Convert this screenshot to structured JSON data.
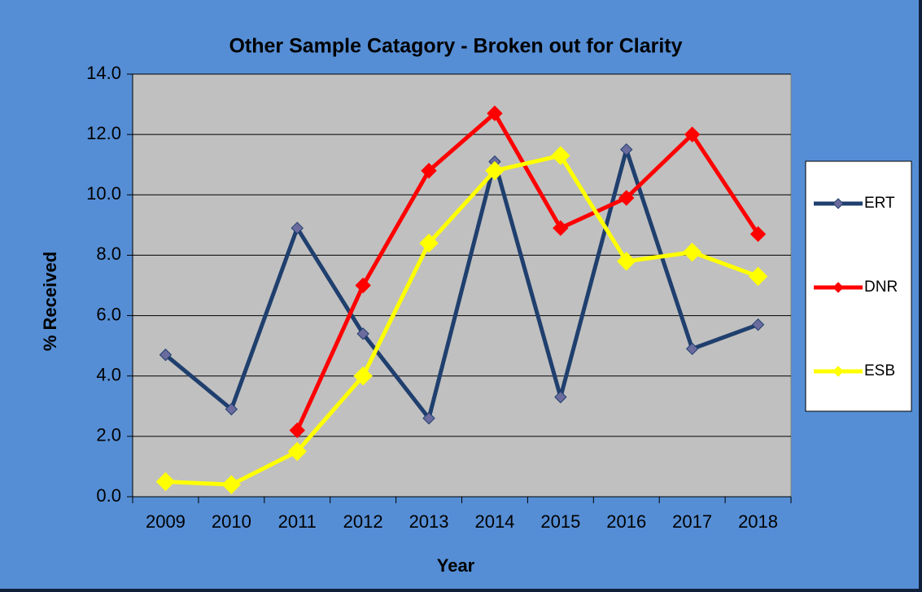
{
  "chart_data": {
    "type": "line",
    "title": "Other Sample Catagory - Broken out for Clarity",
    "x_label": "Year",
    "y_label": "% Received",
    "categories": [
      "2009",
      "2010",
      "2011",
      "2012",
      "2013",
      "2014",
      "2015",
      "2016",
      "2017",
      "2018"
    ],
    "series": [
      {
        "name": "ERT",
        "color": "#1f3f6e",
        "marker_fill": "#6b6b9e",
        "marker_size": 7,
        "values": [
          4.7,
          2.9,
          8.9,
          5.4,
          2.6,
          11.1,
          3.3,
          11.5,
          4.9,
          5.7
        ]
      },
      {
        "name": "DNR",
        "color": "#ff0000",
        "marker_fill": "#ff0000",
        "marker_size": 9,
        "values": [
          null,
          null,
          2.2,
          7.0,
          10.8,
          12.7,
          8.9,
          9.9,
          12.0,
          8.7
        ]
      },
      {
        "name": "ESB",
        "color": "#ffff00",
        "marker_fill": "#ffff00",
        "marker_size": 11,
        "values": [
          0.5,
          0.4,
          1.5,
          4.0,
          8.4,
          10.8,
          11.3,
          7.8,
          8.1,
          7.3
        ]
      }
    ],
    "ylim": [
      0,
      14
    ],
    "yticks": [
      {
        "value": 0,
        "label": "0.0"
      },
      {
        "value": 2,
        "label": "2.0"
      },
      {
        "value": 4,
        "label": "4.0"
      },
      {
        "value": 6,
        "label": "6.0"
      },
      {
        "value": 8,
        "label": "8.0"
      },
      {
        "value": 10,
        "label": "10.0"
      },
      {
        "value": 12,
        "label": "12.0"
      },
      {
        "value": 14,
        "label": "14.0"
      }
    ],
    "grid": true,
    "legend": "right"
  }
}
